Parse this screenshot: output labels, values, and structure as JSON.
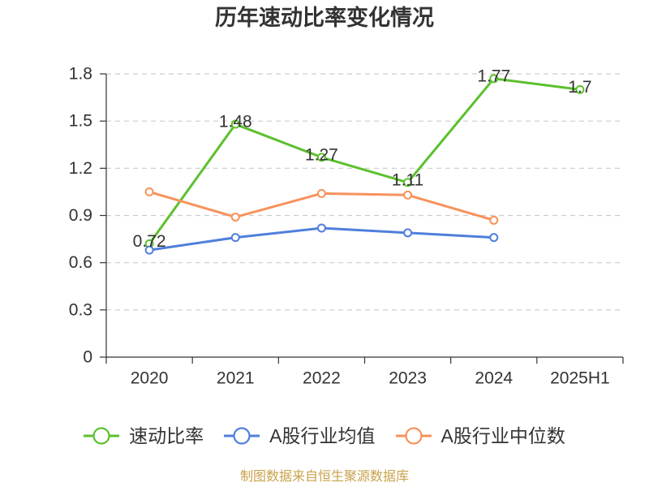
{
  "chart_data": {
    "type": "line",
    "title": "历年速动比率变化情况",
    "categories": [
      "2020",
      "2021",
      "2022",
      "2023",
      "2024",
      "2025H1"
    ],
    "yticks": [
      0,
      0.3,
      0.6,
      0.9,
      1.2,
      1.5,
      1.8
    ],
    "ylim": [
      0,
      1.8
    ],
    "grid": true,
    "legend_position": "bottom",
    "series": [
      {
        "name": "速动比率",
        "color": "#5cc02e",
        "values": [
          0.72,
          1.48,
          1.27,
          1.11,
          1.77,
          1.7
        ],
        "data_labels": true
      },
      {
        "name": "A股行业均值",
        "color": "#4f7fdc",
        "values": [
          0.68,
          0.76,
          0.82,
          0.79,
          0.76,
          null
        ],
        "data_labels": false
      },
      {
        "name": "A股行业中位数",
        "color": "#f7925c",
        "values": [
          1.05,
          0.89,
          1.04,
          1.03,
          0.87,
          null
        ],
        "data_labels": false
      }
    ]
  },
  "source_note": "制图数据来自恒生聚源数据库"
}
